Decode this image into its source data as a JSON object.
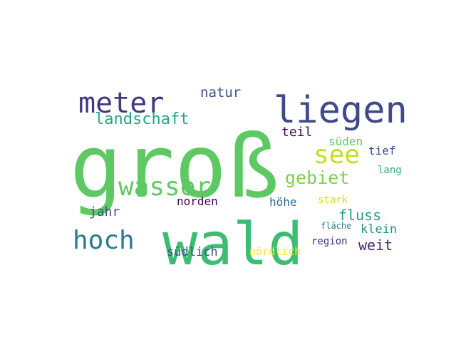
{
  "words": [
    {
      "text": "groß",
      "color": "#5ec962"
    },
    {
      "text": "wald",
      "color": "#3dbc74"
    },
    {
      "text": "liegen",
      "color": "#3e4a89"
    },
    {
      "text": "meter",
      "color": "#453781"
    },
    {
      "text": "wasser",
      "color": "#5ec962"
    },
    {
      "text": "hoch",
      "color": "#2a788e"
    },
    {
      "text": "see",
      "color": "#c2df23"
    },
    {
      "text": "gebiet",
      "color": "#7ad151"
    },
    {
      "text": "landschaft",
      "color": "#22a884"
    },
    {
      "text": "natur",
      "color": "#3b528b"
    },
    {
      "text": "teil",
      "color": "#440154"
    },
    {
      "text": "süden",
      "color": "#5ec962"
    },
    {
      "text": "tief",
      "color": "#3b528b"
    },
    {
      "text": "lang",
      "color": "#2fb47c"
    },
    {
      "text": "jahr",
      "color": "#3b528b"
    },
    {
      "text": "norden",
      "color": "#440154"
    },
    {
      "text": "höhe",
      "color": "#31688e"
    },
    {
      "text": "stark",
      "color": "#d2e21b"
    },
    {
      "text": "fluss",
      "color": "#1f9e89"
    },
    {
      "text": "klein",
      "color": "#21918c"
    },
    {
      "text": "fläche",
      "color": "#2a788e"
    },
    {
      "text": "weit",
      "color": "#482475"
    },
    {
      "text": "region",
      "color": "#472c7a"
    },
    {
      "text": "südlich",
      "color": "#3b528b"
    },
    {
      "text": "nördlich",
      "color": "#fde725"
    }
  ]
}
